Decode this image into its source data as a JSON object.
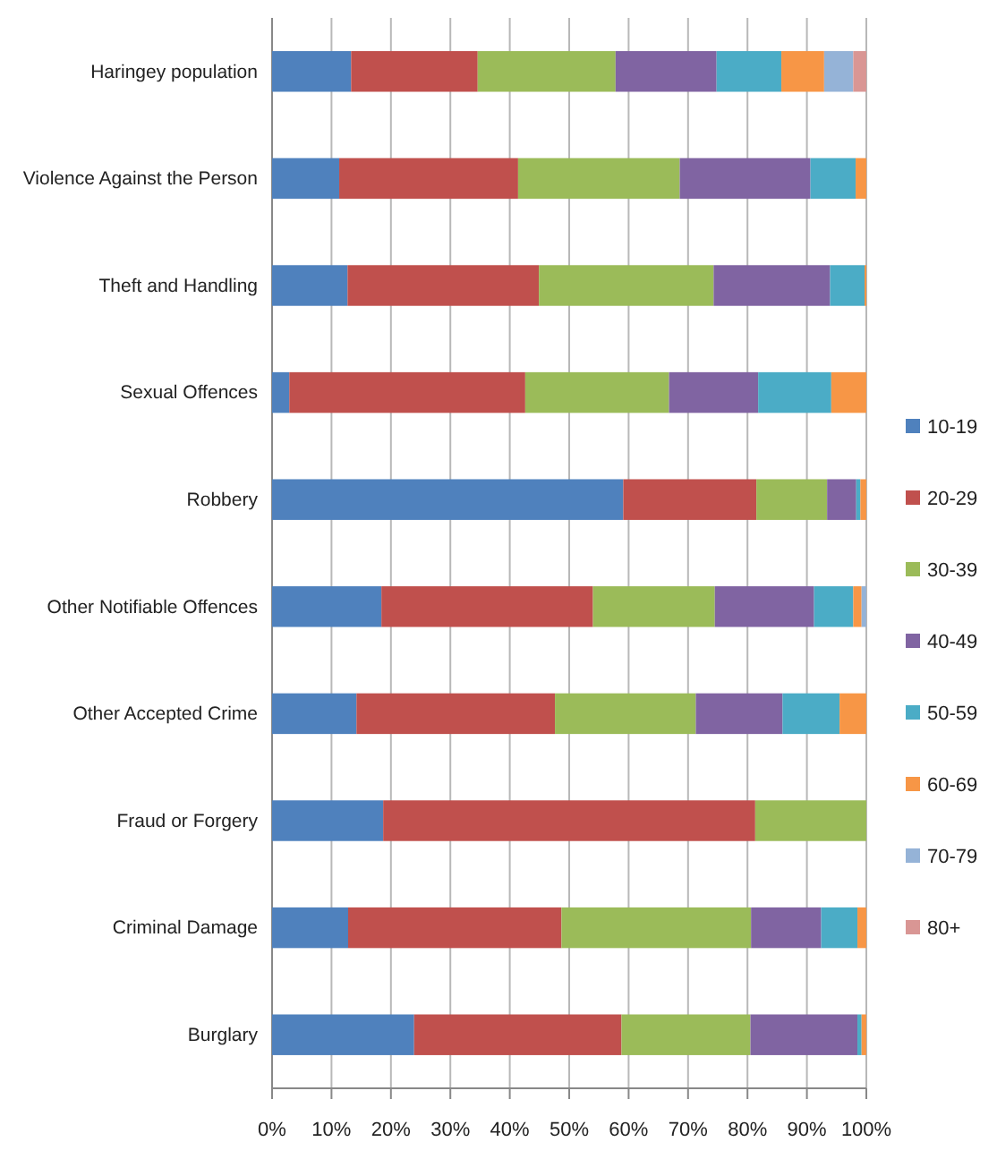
{
  "chart_data": {
    "type": "bar",
    "orientation": "horizontal",
    "stacked": true,
    "categories": [
      "Haringey population",
      "Violence Against the Person",
      "Theft and Handling",
      "Sexual Offences",
      "Robbery",
      "Other Notifiable Offences",
      "Other Accepted Crime",
      "Fraud or Forgery",
      "Criminal Damage",
      "Burglary"
    ],
    "series": [
      {
        "name": "10-19",
        "color": "#4f81bd",
        "values": [
          13.3,
          11.3,
          12.7,
          2.9,
          59.1,
          18.4,
          14.2,
          18.7,
          12.8,
          23.9
        ]
      },
      {
        "name": "20-29",
        "color": "#c0504d",
        "values": [
          21.3,
          30.1,
          32.2,
          39.7,
          22.4,
          35.6,
          33.4,
          62.6,
          35.9,
          34.9
        ]
      },
      {
        "name": "30-39",
        "color": "#9bbb59",
        "values": [
          23.2,
          27.2,
          29.4,
          24.2,
          11.9,
          20.5,
          23.7,
          18.7,
          31.9,
          21.7
        ]
      },
      {
        "name": "40-49",
        "color": "#8064a2",
        "values": [
          17.0,
          22.0,
          19.6,
          15.0,
          4.9,
          16.7,
          14.6,
          0,
          11.8,
          18.0
        ]
      },
      {
        "name": "50-59",
        "color": "#4bacc6",
        "values": [
          10.9,
          7.6,
          5.8,
          12.3,
          0.7,
          6.6,
          9.6,
          0,
          6.1,
          0.7
        ]
      },
      {
        "name": "60-69",
        "color": "#f79646",
        "values": [
          7.2,
          1.8,
          0.3,
          5.9,
          1.0,
          1.4,
          4.5,
          0,
          1.5,
          0.8
        ]
      },
      {
        "name": "70-79",
        "color": "#95b3d7",
        "values": [
          4.9,
          0,
          0,
          0,
          0,
          0.8,
          0,
          0,
          0,
          0
        ]
      },
      {
        "name": "80+",
        "color": "#d99694",
        "values": [
          2.2,
          0,
          0,
          0,
          0,
          0,
          0,
          0,
          0,
          0
        ]
      }
    ],
    "xlim": [
      0,
      100
    ],
    "xticks": [
      {
        "value": 0,
        "label": "0%"
      },
      {
        "value": 10,
        "label": "10%"
      },
      {
        "value": 20,
        "label": "20%"
      },
      {
        "value": 30,
        "label": "30%"
      },
      {
        "value": 40,
        "label": "40%"
      },
      {
        "value": 50,
        "label": "50%"
      },
      {
        "value": 60,
        "label": "60%"
      },
      {
        "value": 70,
        "label": "70%"
      },
      {
        "value": 80,
        "label": "80%"
      },
      {
        "value": 90,
        "label": "90%"
      },
      {
        "value": 100,
        "label": "100%"
      }
    ],
    "grid": "x",
    "legend": "right"
  }
}
